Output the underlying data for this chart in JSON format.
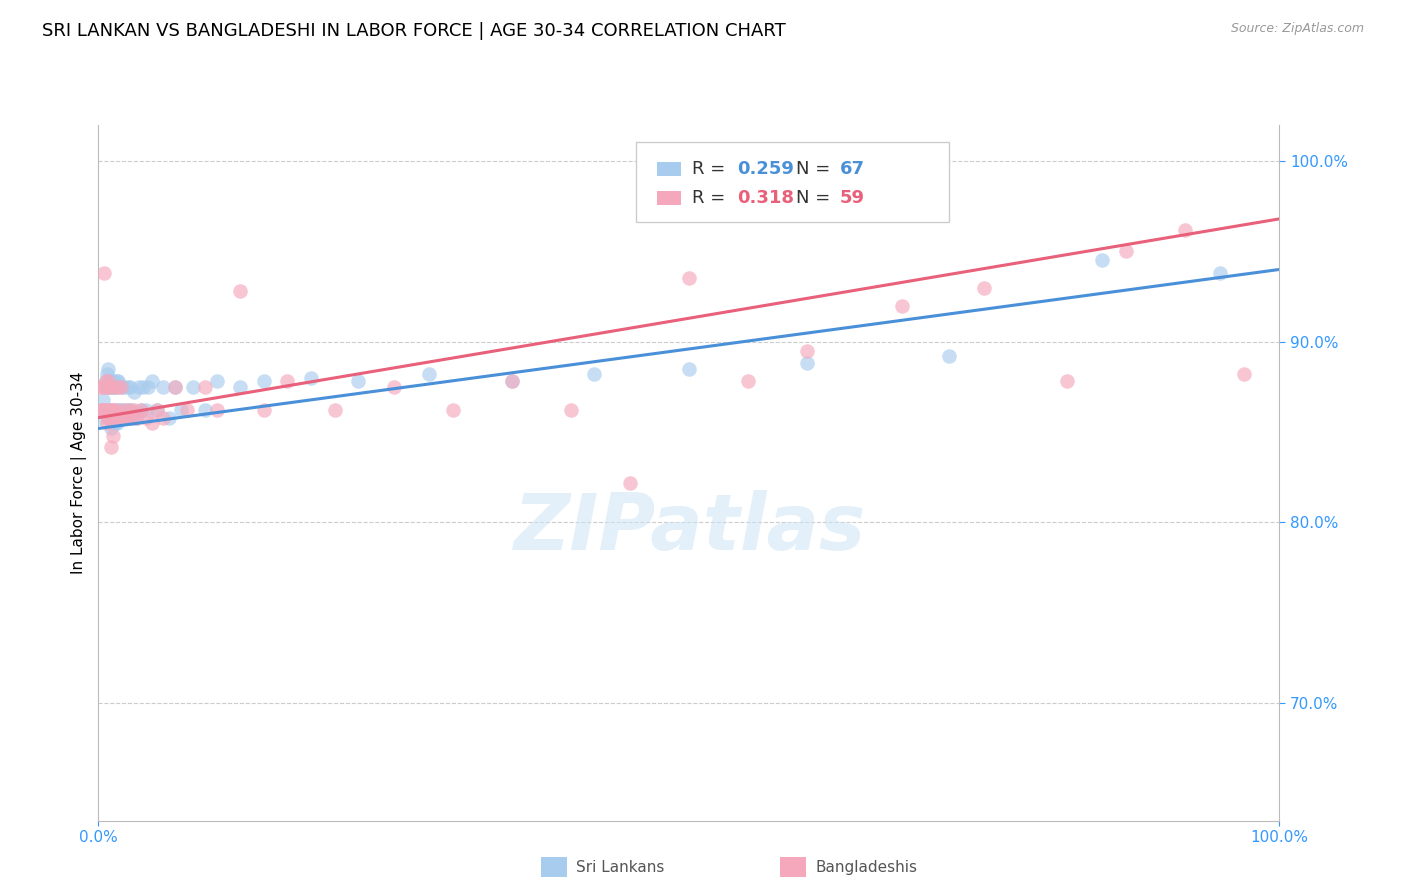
{
  "title": "SRI LANKAN VS BANGLADESHI IN LABOR FORCE | AGE 30-34 CORRELATION CHART",
  "source": "Source: ZipAtlas.com",
  "ylabel": "In Labor Force | Age 30-34",
  "watermark": "ZIPatlas",
  "blue_R": "0.259",
  "blue_N": "67",
  "pink_R": "0.318",
  "pink_N": "59",
  "blue_color": "#A8CCEE",
  "pink_color": "#F5A8BC",
  "blue_line_color": "#4A90D9",
  "pink_line_color": "#E8607A",
  "legend_blue_label": "Sri Lankans",
  "legend_pink_label": "Bangladeshis",
  "blue_scatter_x": [
    0.001,
    0.003,
    0.004,
    0.005,
    0.006,
    0.007,
    0.007,
    0.008,
    0.008,
    0.009,
    0.009,
    0.01,
    0.01,
    0.011,
    0.011,
    0.012,
    0.012,
    0.013,
    0.013,
    0.014,
    0.014,
    0.015,
    0.015,
    0.016,
    0.016,
    0.017,
    0.017,
    0.018,
    0.019,
    0.02,
    0.021,
    0.022,
    0.023,
    0.024,
    0.025,
    0.026,
    0.027,
    0.028,
    0.029,
    0.03,
    0.032,
    0.034,
    0.036,
    0.038,
    0.04,
    0.042,
    0.045,
    0.05,
    0.055,
    0.06,
    0.065,
    0.07,
    0.08,
    0.09,
    0.1,
    0.12,
    0.14,
    0.18,
    0.22,
    0.28,
    0.35,
    0.42,
    0.5,
    0.6,
    0.72,
    0.85,
    0.95
  ],
  "blue_scatter_y": [
    0.858,
    0.862,
    0.868,
    0.875,
    0.878,
    0.862,
    0.882,
    0.875,
    0.885,
    0.858,
    0.875,
    0.862,
    0.878,
    0.852,
    0.875,
    0.862,
    0.875,
    0.858,
    0.878,
    0.855,
    0.875,
    0.858,
    0.875,
    0.855,
    0.878,
    0.862,
    0.878,
    0.862,
    0.875,
    0.862,
    0.858,
    0.875,
    0.862,
    0.858,
    0.875,
    0.862,
    0.875,
    0.862,
    0.858,
    0.872,
    0.858,
    0.875,
    0.862,
    0.875,
    0.862,
    0.875,
    0.878,
    0.862,
    0.875,
    0.858,
    0.875,
    0.862,
    0.875,
    0.862,
    0.878,
    0.875,
    0.878,
    0.88,
    0.878,
    0.882,
    0.878,
    0.882,
    0.885,
    0.888,
    0.892,
    0.945,
    0.938
  ],
  "pink_scatter_x": [
    0.001,
    0.002,
    0.003,
    0.004,
    0.005,
    0.005,
    0.006,
    0.006,
    0.007,
    0.007,
    0.008,
    0.008,
    0.009,
    0.009,
    0.01,
    0.011,
    0.011,
    0.012,
    0.013,
    0.014,
    0.015,
    0.016,
    0.017,
    0.018,
    0.019,
    0.02,
    0.022,
    0.024,
    0.026,
    0.028,
    0.03,
    0.033,
    0.036,
    0.04,
    0.045,
    0.05,
    0.055,
    0.065,
    0.075,
    0.09,
    0.1,
    0.12,
    0.14,
    0.16,
    0.2,
    0.25,
    0.3,
    0.35,
    0.4,
    0.45,
    0.5,
    0.55,
    0.6,
    0.68,
    0.75,
    0.82,
    0.87,
    0.92,
    0.97
  ],
  "pink_scatter_y": [
    0.862,
    0.875,
    0.862,
    0.875,
    0.862,
    0.938,
    0.862,
    0.878,
    0.855,
    0.875,
    0.858,
    0.878,
    0.858,
    0.875,
    0.862,
    0.842,
    0.862,
    0.848,
    0.875,
    0.862,
    0.862,
    0.858,
    0.875,
    0.858,
    0.875,
    0.858,
    0.862,
    0.858,
    0.862,
    0.858,
    0.862,
    0.858,
    0.862,
    0.858,
    0.855,
    0.862,
    0.858,
    0.875,
    0.862,
    0.875,
    0.862,
    0.928,
    0.862,
    0.878,
    0.862,
    0.875,
    0.862,
    0.878,
    0.862,
    0.822,
    0.935,
    0.878,
    0.895,
    0.92,
    0.93,
    0.878,
    0.95,
    0.962,
    0.882
  ],
  "xlim": [
    0.0,
    1.0
  ],
  "ylim": [
    0.635,
    1.02
  ],
  "blue_line_x": [
    0.0,
    1.0
  ],
  "blue_line_y": [
    0.852,
    0.94
  ],
  "pink_line_x": [
    0.0,
    1.0
  ],
  "pink_line_y": [
    0.858,
    0.968
  ],
  "x_tick_vals": [
    0.0,
    1.0
  ],
  "x_tick_labels": [
    "0.0%",
    "100.0%"
  ],
  "y_tick_vals": [
    0.7,
    0.8,
    0.9,
    1.0
  ],
  "y_tick_labels": [
    "70.0%",
    "80.0%",
    "90.0%",
    "100.0%"
  ],
  "axis_color": "#3399FF",
  "grid_color": "#cccccc",
  "title_fontsize": 13,
  "tick_fontsize": 11,
  "scatter_size": 110,
  "scatter_alpha": 0.65,
  "line_width": 2.2
}
